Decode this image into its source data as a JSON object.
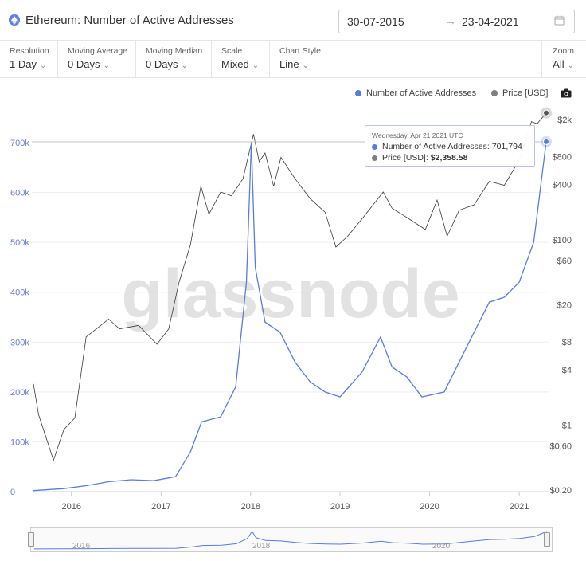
{
  "header": {
    "title": "Ethereum: Number of Active Addresses",
    "date_from": "30-07-2015",
    "date_arrow": "→",
    "date_to": "23-04-2021"
  },
  "controls": [
    {
      "label": "Resolution",
      "value": "1 Day"
    },
    {
      "label": "Moving Average",
      "value": "0 Days"
    },
    {
      "label": "Moving Median",
      "value": "0 Days"
    },
    {
      "label": "Scale",
      "value": "Mixed"
    },
    {
      "label": "Chart Style",
      "value": "Line"
    }
  ],
  "zoom": {
    "label": "Zoom",
    "value": "All"
  },
  "legend": {
    "addresses": "Number of Active Addresses",
    "price": "Price [USD]"
  },
  "tooltip": {
    "date": "Wednesday, Apr 21 2021 UTC",
    "addresses_label": "Number of Active Addresses:",
    "addresses_value": "701,794",
    "price_label": "Price [USD]:",
    "price_value": "$2,358.58"
  },
  "watermark": "glassnode",
  "colors": {
    "addresses": "#5b7be0",
    "price": "#3a3a3a",
    "legend_price_dot": "#7f7f7f",
    "accent": "#627eea"
  },
  "chart_data": {
    "type": "line",
    "x_ticks": [
      "2016",
      "2017",
      "2018",
      "2019",
      "2020",
      "2021"
    ],
    "y_left_ticks": [
      "0",
      "100k",
      "200k",
      "300k",
      "400k",
      "500k",
      "600k",
      "700k"
    ],
    "y_right_ticks": [
      "$0.20",
      "$0.60",
      "$1",
      "$4",
      "$8",
      "$20",
      "$60",
      "$100",
      "$400",
      "$800",
      "$2k"
    ],
    "y_left_range": [
      0,
      700000
    ],
    "y_right_scale": "log",
    "grid": "horizontal",
    "series": [
      {
        "name": "Number of Active Addresses",
        "axis": "left",
        "points": [
          [
            "2015-07-30",
            2000
          ],
          [
            "2015-12-01",
            6000
          ],
          [
            "2016-03-01",
            12000
          ],
          [
            "2016-06-01",
            20000
          ],
          [
            "2016-09-01",
            24000
          ],
          [
            "2016-12-01",
            22000
          ],
          [
            "2017-03-01",
            30000
          ],
          [
            "2017-05-01",
            80000
          ],
          [
            "2017-06-15",
            140000
          ],
          [
            "2017-09-01",
            150000
          ],
          [
            "2017-11-01",
            210000
          ],
          [
            "2017-12-15",
            420000
          ],
          [
            "2018-01-04",
            700000
          ],
          [
            "2018-01-20",
            450000
          ],
          [
            "2018-03-01",
            340000
          ],
          [
            "2018-05-01",
            320000
          ],
          [
            "2018-07-01",
            260000
          ],
          [
            "2018-09-01",
            220000
          ],
          [
            "2018-11-01",
            200000
          ],
          [
            "2019-01-01",
            190000
          ],
          [
            "2019-04-01",
            240000
          ],
          [
            "2019-06-15",
            310000
          ],
          [
            "2019-08-01",
            250000
          ],
          [
            "2019-10-01",
            230000
          ],
          [
            "2019-12-01",
            190000
          ],
          [
            "2020-03-01",
            200000
          ],
          [
            "2020-05-01",
            260000
          ],
          [
            "2020-07-01",
            320000
          ],
          [
            "2020-09-01",
            380000
          ],
          [
            "2020-11-01",
            390000
          ],
          [
            "2021-01-01",
            420000
          ],
          [
            "2021-03-01",
            500000
          ],
          [
            "2021-04-21",
            701794
          ]
        ]
      },
      {
        "name": "Price [USD]",
        "axis": "right",
        "points": [
          [
            "2015-07-30",
            2.8
          ],
          [
            "2015-08-20",
            1.3
          ],
          [
            "2015-10-20",
            0.42
          ],
          [
            "2015-12-01",
            0.9
          ],
          [
            "2016-01-15",
            1.2
          ],
          [
            "2016-03-01",
            9
          ],
          [
            "2016-06-01",
            14
          ],
          [
            "2016-07-15",
            11
          ],
          [
            "2016-10-01",
            12
          ],
          [
            "2016-12-15",
            7.5
          ],
          [
            "2017-02-01",
            11
          ],
          [
            "2017-03-15",
            35
          ],
          [
            "2017-05-01",
            90
          ],
          [
            "2017-06-12",
            380
          ],
          [
            "2017-07-15",
            190
          ],
          [
            "2017-09-01",
            330
          ],
          [
            "2017-10-15",
            300
          ],
          [
            "2017-12-01",
            460
          ],
          [
            "2018-01-13",
            1390
          ],
          [
            "2018-02-05",
            700
          ],
          [
            "2018-03-01",
            870
          ],
          [
            "2018-04-05",
            380
          ],
          [
            "2018-05-05",
            780
          ],
          [
            "2018-07-01",
            460
          ],
          [
            "2018-09-01",
            280
          ],
          [
            "2018-11-01",
            200
          ],
          [
            "2018-12-15",
            84
          ],
          [
            "2019-02-01",
            110
          ],
          [
            "2019-04-01",
            170
          ],
          [
            "2019-06-26",
            330
          ],
          [
            "2019-08-01",
            220
          ],
          [
            "2019-10-01",
            175
          ],
          [
            "2019-12-15",
            130
          ],
          [
            "2020-02-01",
            270
          ],
          [
            "2020-03-13",
            110
          ],
          [
            "2020-05-01",
            210
          ],
          [
            "2020-07-01",
            240
          ],
          [
            "2020-09-01",
            430
          ],
          [
            "2020-11-01",
            390
          ],
          [
            "2021-01-01",
            730
          ],
          [
            "2021-02-20",
            1900
          ],
          [
            "2021-03-15",
            1800
          ],
          [
            "2021-04-21",
            2358.58
          ]
        ]
      }
    ]
  }
}
